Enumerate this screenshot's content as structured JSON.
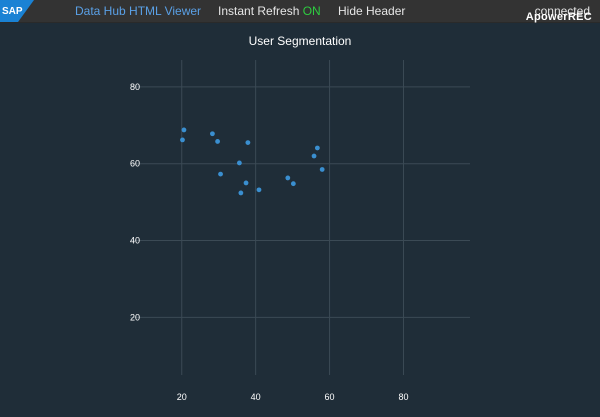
{
  "header": {
    "viewer_label": "Data Hub HTML Viewer",
    "refresh_label": "Instant Refresh",
    "refresh_state": "ON",
    "hide_header_label": "Hide Header",
    "status": "connected",
    "watermark": "ApowerREC",
    "logo_text": "SAP",
    "colors": {
      "link": "#5aa0e6",
      "on": "#2ecc40",
      "bar": "#333333"
    }
  },
  "chart_data": {
    "type": "scatter",
    "title": "User Segmentation",
    "xlabel": "",
    "ylabel": "",
    "xlim": [
      6,
      98
    ],
    "ylim": [
      5,
      87
    ],
    "xticks": [
      20,
      40,
      60,
      80
    ],
    "yticks": [
      20,
      40,
      60,
      80
    ],
    "grid": true,
    "points": [
      {
        "x": 20.2,
        "y": 66.2
      },
      {
        "x": 20.6,
        "y": 68.8
      },
      {
        "x": 28.3,
        "y": 67.8
      },
      {
        "x": 29.7,
        "y": 65.8
      },
      {
        "x": 30.5,
        "y": 57.3
      },
      {
        "x": 35.6,
        "y": 60.2
      },
      {
        "x": 36.0,
        "y": 52.4
      },
      {
        "x": 37.4,
        "y": 55.0
      },
      {
        "x": 37.9,
        "y": 65.5
      },
      {
        "x": 40.9,
        "y": 53.2
      },
      {
        "x": 48.7,
        "y": 56.3
      },
      {
        "x": 50.2,
        "y": 54.8
      },
      {
        "x": 55.8,
        "y": 62.0
      },
      {
        "x": 56.7,
        "y": 64.1
      },
      {
        "x": 58.0,
        "y": 58.5
      }
    ],
    "color": "#3a8fd0"
  }
}
